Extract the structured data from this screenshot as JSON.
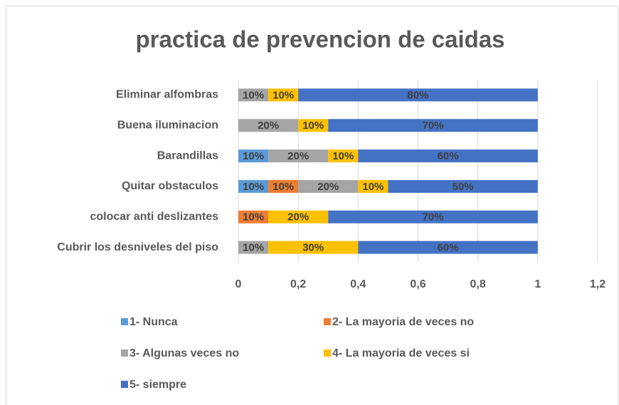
{
  "chart_data": {
    "type": "stacked_bar_horizontal",
    "title": "practica de prevencion de caidas",
    "categories": [
      "Eliminar alfombras",
      "Buena iluminacion",
      "Barandillas",
      "Quitar obstaculos",
      "colocar anti deslizantes",
      "Cubrir los desniveles del piso"
    ],
    "series": [
      {
        "name": "1- Nunca",
        "color": "#5b9bd5",
        "values": [
          null,
          null,
          0.1,
          0.1,
          null,
          null
        ],
        "value_labels": [
          null,
          null,
          "10%",
          "10%",
          null,
          null
        ]
      },
      {
        "name": "2- La mayoria de veces no",
        "color": "#ed7d31",
        "values": [
          null,
          null,
          null,
          0.1,
          0.1,
          null
        ],
        "value_labels": [
          null,
          null,
          null,
          "10%",
          "10%",
          null
        ]
      },
      {
        "name": "3- Algunas veces no",
        "color": "#a5a5a5",
        "values": [
          0.1,
          0.2,
          0.2,
          0.2,
          null,
          0.1
        ],
        "value_labels": [
          "10%",
          "20%",
          "20%",
          "20%",
          null,
          "10%"
        ]
      },
      {
        "name": "4- La mayoria de veces si",
        "color": "#ffc000",
        "values": [
          0.1,
          0.1,
          0.1,
          0.1,
          0.2,
          0.3
        ],
        "value_labels": [
          "10%",
          "10%",
          "10%",
          "10%",
          "20%",
          "30%"
        ]
      },
      {
        "name": "5- siempre",
        "color": "#4472c4",
        "values": [
          0.8,
          0.7,
          0.6,
          0.5,
          0.7,
          0.6
        ],
        "value_labels": [
          "80%",
          "70%",
          "60%",
          "50%",
          "70%",
          "60%"
        ]
      }
    ],
    "xlim": [
      0,
      1.2
    ],
    "xticks": [
      0,
      {
        "value": 0.2,
        "label": "0,2"
      },
      {
        "value": 0.4,
        "label": "0,4"
      },
      {
        "value": 0.6,
        "label": "0,6"
      },
      {
        "value": 0.8,
        "label": "0,8"
      },
      1,
      {
        "value": 1.2,
        "label": "1,2"
      }
    ],
    "grid": true,
    "legend": "bottom"
  }
}
